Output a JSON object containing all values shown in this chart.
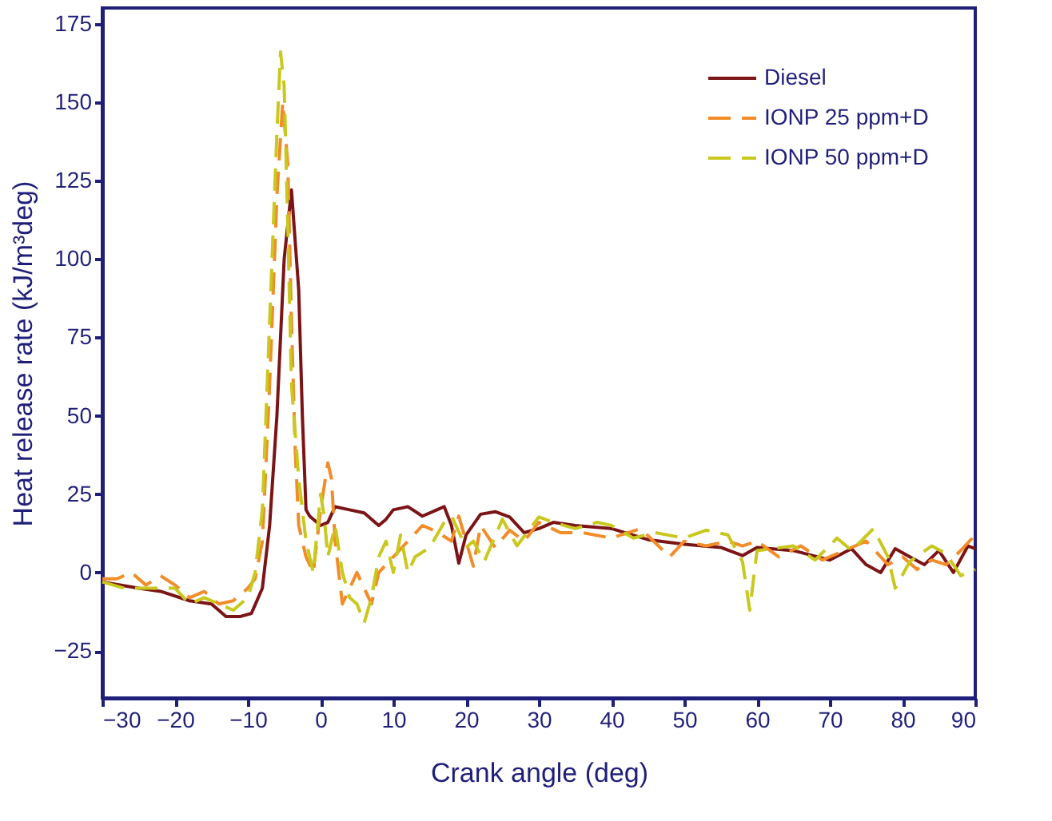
{
  "chart_data": {
    "type": "line",
    "xlabel": "Crank angle (deg)",
    "ylabel": "Heat release rate (kJ/m³deg)",
    "xlim": [
      -30,
      90
    ],
    "xticks": [
      -30,
      -20,
      -10,
      0,
      10,
      20,
      30,
      40,
      50,
      60,
      70,
      80,
      90
    ],
    "ylim": [
      -40,
      180
    ],
    "yticks": [
      -25,
      0,
      25,
      50,
      75,
      100,
      125,
      150,
      175
    ],
    "grid": false,
    "legend": "top right",
    "marker": "none",
    "series": [
      {
        "name": "Diesel",
        "color": "#7b1416",
        "line_style": "solid",
        "x": [
          -30,
          -25,
          -22,
          -18,
          -15,
          -13,
          -11,
          -9.5,
          -8,
          -7,
          -6,
          -5,
          -4,
          -3,
          -2.5,
          -2,
          -1.5,
          0,
          1,
          2,
          4,
          6,
          8,
          9,
          10,
          12,
          14,
          16,
          17,
          18,
          19,
          20,
          22,
          24,
          26,
          28,
          30,
          32,
          35,
          40,
          45,
          50,
          55,
          58,
          60,
          65,
          70,
          73,
          75,
          77,
          79,
          81,
          83,
          85,
          87,
          89,
          90
        ],
        "values": [
          -3,
          -5,
          -6,
          -9,
          -10,
          -14,
          -14,
          -13,
          -5,
          15,
          50,
          100,
          122,
          90,
          50,
          20,
          18,
          15,
          16,
          21,
          20,
          19,
          15,
          17,
          20,
          21,
          18,
          20,
          21,
          15,
          3,
          12,
          18.6,
          19.4,
          17.7,
          12.7,
          14,
          16,
          15,
          14,
          10.5,
          9,
          8,
          5.4,
          8,
          7,
          4,
          7.6,
          2.5,
          0,
          7.6,
          5,
          2.5,
          7,
          0,
          8.5,
          7.6
        ]
      },
      {
        "name": "IONP 25 ppm+D",
        "color": "#f28c28",
        "line_style": "dashed",
        "x": [
          -30,
          -28,
          -26,
          -24,
          -22,
          -20,
          -18,
          -16,
          -14,
          -12,
          -10,
          -9,
          -8,
          -7,
          -6,
          -5.2,
          -4.5,
          -4,
          -3.5,
          -3,
          -2,
          -1,
          0,
          1,
          1.5,
          2,
          3,
          4,
          5,
          6,
          7,
          8,
          10,
          12,
          14,
          16,
          18,
          19,
          20,
          21,
          22,
          24,
          26,
          28,
          30,
          33,
          36,
          40,
          44,
          48,
          50,
          53,
          56,
          58,
          60,
          63,
          66,
          69,
          72,
          75,
          78,
          80,
          82,
          84,
          86,
          88,
          90
        ],
        "values": [
          -2,
          -2,
          0,
          -4,
          -1,
          -4,
          -8,
          -6,
          -10,
          -9,
          -5,
          -2,
          10,
          60,
          120,
          150,
          130,
          80,
          40,
          15,
          5,
          0,
          20,
          35,
          30,
          10,
          -10,
          -5,
          0,
          -5,
          -10,
          0,
          5,
          10,
          15,
          13,
          10,
          18,
          10,
          2,
          15,
          8,
          13.5,
          10,
          16,
          12.7,
          12.7,
          11,
          14,
          5,
          10,
          8.5,
          10,
          8.5,
          10,
          5,
          8.5,
          4,
          7,
          10,
          2.5,
          5,
          1,
          4,
          2.5,
          7,
          12
        ]
      },
      {
        "name": "IONP 50 ppm+D",
        "color": "#c8c81e",
        "line_style": "dashed",
        "x": [
          -30,
          -27,
          -24,
          -20,
          -18,
          -16,
          -14,
          -12,
          -10,
          -9,
          -8,
          -7,
          -6,
          -5.5,
          -5,
          -4.5,
          -4,
          -3,
          -2,
          -1,
          0,
          0.5,
          1,
          2,
          3,
          4,
          5,
          6,
          7,
          8,
          9,
          10,
          11,
          12,
          13,
          15,
          17,
          18,
          20,
          21,
          22.5,
          25,
          27,
          30,
          32,
          35,
          38,
          40,
          43,
          46,
          50,
          53,
          56,
          58,
          59,
          60,
          62,
          65,
          68,
          71,
          73,
          76,
          78,
          79,
          81,
          84,
          86,
          88,
          90
        ],
        "values": [
          -3,
          -5,
          -5,
          -5,
          -10,
          -8,
          -10,
          -12,
          -8,
          0,
          20,
          80,
          140,
          166,
          155,
          110,
          60,
          30,
          10,
          0,
          25,
          18,
          5,
          15,
          0,
          -8,
          -10,
          -16,
          -8,
          5,
          10,
          0,
          12,
          0,
          5,
          8,
          16,
          18,
          8,
          10,
          3.5,
          17,
          8.5,
          17.7,
          16,
          14,
          16,
          15,
          11,
          12.7,
          11,
          13.5,
          12,
          3.5,
          -12,
          7,
          7.6,
          8.5,
          4,
          11,
          7,
          14,
          5,
          -5,
          3.5,
          8.5,
          6,
          -1,
          1
        ]
      }
    ]
  }
}
